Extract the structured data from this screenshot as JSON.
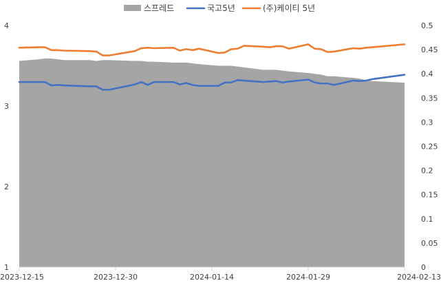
{
  "chart_data": {
    "type": "line",
    "title": "",
    "xlabel": "",
    "ylabel": "",
    "x": [
      "2023-12-15",
      "2023-12-18",
      "2023-12-19",
      "2023-12-20",
      "2023-12-21",
      "2023-12-22",
      "2023-12-26",
      "2023-12-27",
      "2023-12-28",
      "2023-12-29",
      "2024-01-02",
      "2024-01-03",
      "2024-01-04",
      "2024-01-05",
      "2024-01-08",
      "2024-01-09",
      "2024-01-10",
      "2024-01-11",
      "2024-01-12",
      "2024-01-15",
      "2024-01-16",
      "2024-01-17",
      "2024-01-18",
      "2024-01-19",
      "2024-01-22",
      "2024-01-23",
      "2024-01-24",
      "2024-01-25",
      "2024-01-26",
      "2024-01-29",
      "2024-01-30",
      "2024-01-31",
      "2024-02-01",
      "2024-02-02",
      "2024-02-05",
      "2024-02-06",
      "2024-02-07",
      "2024-02-08",
      "2024-02-13"
    ],
    "x_ticks": [
      "2023-12-15",
      "2023-12-30",
      "2024-01-14",
      "2024-01-29",
      "2024-02-13"
    ],
    "y_left": {
      "min": 1,
      "max": 4,
      "ticks": [
        "1",
        "2",
        "3",
        "4"
      ]
    },
    "y_right": {
      "min": 0,
      "max": 0.5,
      "ticks": [
        "0",
        "0.05",
        "0.1",
        "0.15",
        "0.2",
        "0.25",
        "0.3",
        "0.35",
        "0.4",
        "0.45",
        "0.5"
      ]
    },
    "legend_position": "top",
    "series": [
      {
        "name": "스프레드",
        "kind": "area",
        "axis": "left",
        "color": "#a5a5a5",
        "values": [
          3.56,
          3.58,
          3.59,
          3.59,
          3.58,
          3.57,
          3.57,
          3.56,
          3.57,
          3.57,
          3.56,
          3.56,
          3.55,
          3.55,
          3.54,
          3.54,
          3.54,
          3.53,
          3.52,
          3.5,
          3.5,
          3.5,
          3.49,
          3.48,
          3.45,
          3.45,
          3.45,
          3.44,
          3.43,
          3.41,
          3.4,
          3.39,
          3.37,
          3.37,
          3.35,
          3.34,
          3.32,
          3.31,
          3.29
        ]
      },
      {
        "name": "국고5년",
        "kind": "line",
        "axis": "right",
        "color": "#4472c4",
        "values": [
          0.383,
          0.383,
          0.383,
          0.376,
          0.377,
          0.376,
          0.374,
          0.374,
          0.367,
          0.367,
          0.378,
          0.383,
          0.377,
          0.383,
          0.383,
          0.378,
          0.381,
          0.377,
          0.375,
          0.375,
          0.382,
          0.382,
          0.387,
          0.386,
          0.383,
          0.384,
          0.385,
          0.382,
          0.384,
          0.388,
          0.382,
          0.38,
          0.38,
          0.377,
          0.386,
          0.385,
          0.386,
          0.389,
          0.398
        ]
      },
      {
        "name": "(주)케이티 5년",
        "kind": "line",
        "axis": "right",
        "color": "#ed7d31",
        "values": [
          0.454,
          0.455,
          0.455,
          0.449,
          0.449,
          0.448,
          0.447,
          0.446,
          0.438,
          0.438,
          0.447,
          0.453,
          0.454,
          0.453,
          0.454,
          0.448,
          0.451,
          0.449,
          0.452,
          0.443,
          0.444,
          0.451,
          0.452,
          0.458,
          0.456,
          0.455,
          0.457,
          0.457,
          0.452,
          0.461,
          0.452,
          0.451,
          0.445,
          0.446,
          0.453,
          0.452,
          0.454,
          0.455,
          0.461
        ]
      }
    ]
  }
}
